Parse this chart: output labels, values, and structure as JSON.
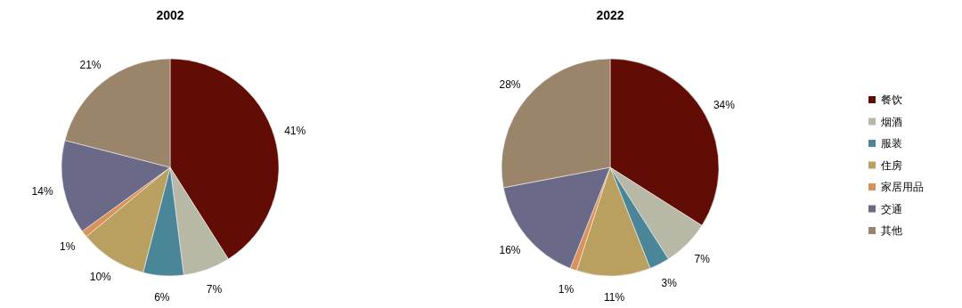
{
  "chart_data": [
    {
      "type": "pie",
      "title": "2002",
      "categories": [
        null,
        null,
        null,
        null,
        null,
        null,
        null
      ],
      "values": [
        41,
        7,
        6,
        10,
        1,
        14,
        21
      ],
      "colors": [
        "#610d06",
        "#b8b8a6",
        "#4a8598",
        "#b9a060",
        "#d9935a",
        "#6a6a88",
        "#9a846a"
      ],
      "value_labels": [
        "41%",
        "7%",
        "6%",
        "10%",
        "1%",
        "14%",
        "21%"
      ],
      "legend": false
    },
    {
      "type": "pie",
      "title": "2022",
      "categories": [
        "餐饮",
        "烟酒",
        "服装",
        "住房",
        "家居用品",
        "交通",
        "其他"
      ],
      "values": [
        34,
        7,
        3,
        11,
        1,
        16,
        28
      ],
      "colors": [
        "#610d06",
        "#b8b8a6",
        "#4a8598",
        "#b9a060",
        "#d9935a",
        "#6a6a88",
        "#9a846a"
      ],
      "value_labels": [
        "34%",
        "7%",
        "3%",
        "11%",
        "1%",
        "16%",
        "28%"
      ],
      "legend": "right"
    }
  ]
}
